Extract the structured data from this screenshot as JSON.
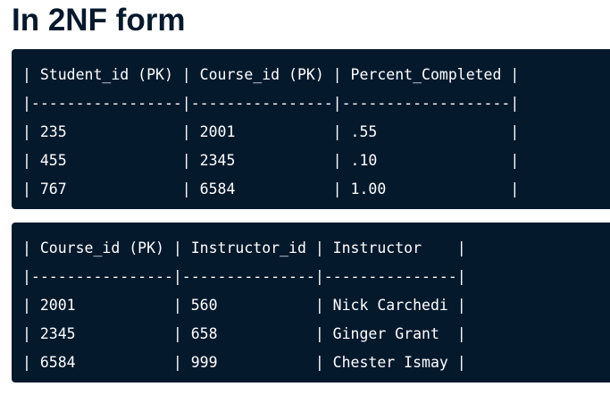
{
  "heading": "In 2NF form",
  "tables": [
    {
      "lines": [
        "| Student_id (PK) | Course_id (PK) | Percent_Completed |",
        "|-----------------|----------------|-------------------|",
        "| 235             | 2001           | .55               |",
        "| 455             | 2345           | .10               |",
        "| 767             | 6584           | 1.00              |"
      ]
    },
    {
      "lines": [
        "| Course_id (PK) | Instructor_id | Instructor    |",
        "|----------------|---------------|---------------|",
        "| 2001           | 560           | Nick Carchedi |",
        "| 2345           | 658           | Ginger Grant  |",
        "| 6584           | 999           | Chester Ismay |"
      ]
    }
  ]
}
